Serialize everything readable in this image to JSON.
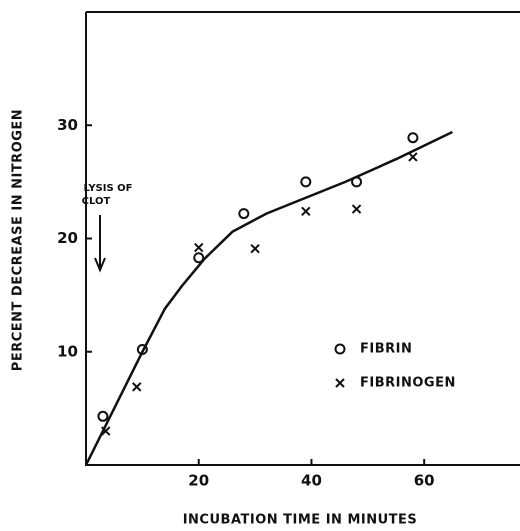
{
  "chart_data": {
    "type": "scatter",
    "xlabel": "INCUBATION TIME IN MINUTES",
    "ylabel": "PERCENT DECREASE IN NITROGEN",
    "xlim": [
      0,
      77
    ],
    "ylim": [
      0,
      40
    ],
    "xticks": [
      20,
      40,
      60
    ],
    "yticks": [
      10,
      20,
      30
    ],
    "annotation": [
      "LYSIS OF",
      "CLOT"
    ],
    "series": [
      {
        "name": "FIBRIN",
        "marker": "o",
        "color": "#111111",
        "x": [
          3,
          10,
          20,
          28,
          39,
          48,
          58
        ],
        "values": [
          4.3,
          10.2,
          18.3,
          22.2,
          25,
          25,
          28.9
        ]
      },
      {
        "name": "FIBRINOGEN",
        "marker": "x",
        "color": "#111111",
        "x": [
          3.5,
          9,
          20,
          30,
          39,
          48,
          58
        ],
        "values": [
          3,
          6.9,
          19.2,
          19.1,
          22.4,
          22.6,
          27.2
        ]
      }
    ],
    "curve": {
      "color": "#111111",
      "x": [
        0,
        10,
        14,
        17,
        21,
        26,
        32,
        38,
        46,
        55,
        65
      ],
      "y": [
        0,
        10,
        13.8,
        15.8,
        18.2,
        20.6,
        22.2,
        23.4,
        25,
        27,
        29.4
      ]
    }
  }
}
